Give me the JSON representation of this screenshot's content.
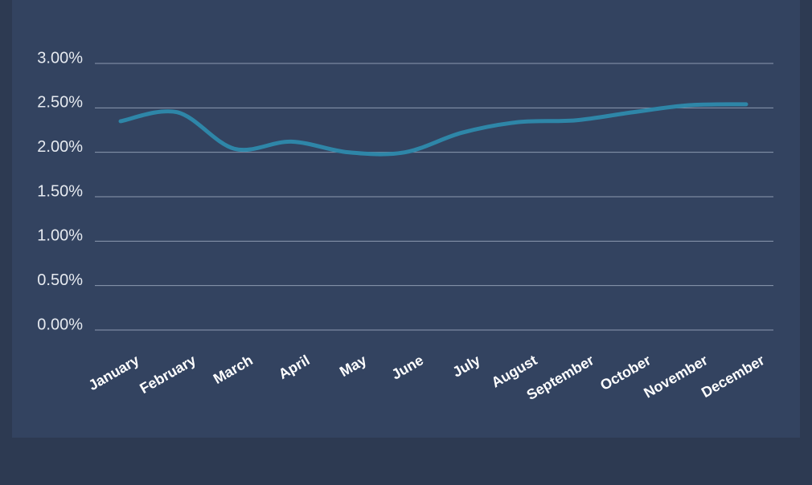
{
  "chart_data": {
    "type": "line",
    "categories": [
      "January",
      "February",
      "March",
      "April",
      "May",
      "June",
      "July",
      "August",
      "September",
      "October",
      "November",
      "December"
    ],
    "series": [
      {
        "color": "#2e86a8",
        "values": [
          2.35,
          2.45,
          2.04,
          2.12,
          2.0,
          2.0,
          2.22,
          2.34,
          2.36,
          2.45,
          2.53,
          2.54
        ]
      }
    ],
    "ylim": [
      0,
      3
    ],
    "yticks": [
      {
        "value": 0,
        "label": "0.00%"
      },
      {
        "value": 0.5,
        "label": "0.50%"
      },
      {
        "value": 1,
        "label": "1.00%"
      },
      {
        "value": 1.5,
        "label": "1.50%"
      },
      {
        "value": 2,
        "label": "2.00%"
      },
      {
        "value": 2.5,
        "label": "2.50%"
      },
      {
        "value": 3,
        "label": "3.00%"
      }
    ],
    "grid": true
  }
}
